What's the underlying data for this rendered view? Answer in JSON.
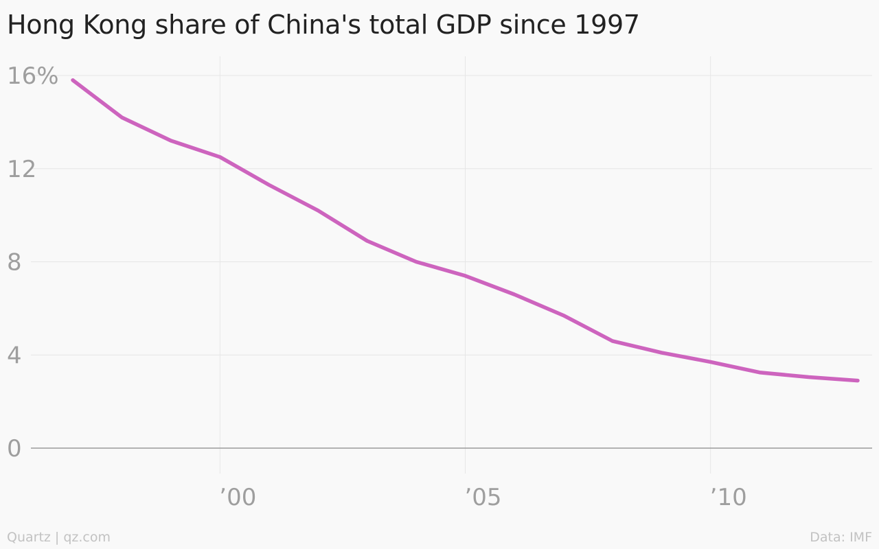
{
  "header": {
    "title": "Hong Kong share of China's total GDP since 1997"
  },
  "footer": {
    "credit": "Quartz | qz.com",
    "source": "Data: IMF"
  },
  "colors": {
    "line": "#cd64be",
    "grid": "#e6e6e6",
    "baseline": "#9a9a9a",
    "tick_text": "#9e9e9e",
    "background": "#f9f9f9"
  },
  "chart_data": {
    "type": "line",
    "title": "Hong Kong share of China's total GDP since 1997",
    "xlabel": "",
    "ylabel": "",
    "x": [
      1997,
      1998,
      1999,
      2000,
      2001,
      2002,
      2003,
      2004,
      2005,
      2006,
      2007,
      2008,
      2009,
      2010,
      2011,
      2012,
      2013
    ],
    "series": [
      {
        "values": [
          15.8,
          14.2,
          13.2,
          12.5,
          11.3,
          10.2,
          8.9,
          8.0,
          7.4,
          6.6,
          5.7,
          4.6,
          4.1,
          3.7,
          3.25,
          3.05,
          2.9
        ],
        "color": "#cd64be"
      }
    ],
    "ylim": [
      0,
      16
    ],
    "xlim": [
      1997,
      2013
    ],
    "y_ticks": [
      {
        "value": 16,
        "label": "16%"
      },
      {
        "value": 12,
        "label": "12"
      },
      {
        "value": 8,
        "label": "8"
      },
      {
        "value": 4,
        "label": "4"
      },
      {
        "value": 0,
        "label": "0"
      }
    ],
    "x_ticks": [
      {
        "value": 2000,
        "label": "’00"
      },
      {
        "value": 2005,
        "label": "’05"
      },
      {
        "value": 2010,
        "label": "’10"
      }
    ],
    "grid": true,
    "legend": "none"
  }
}
